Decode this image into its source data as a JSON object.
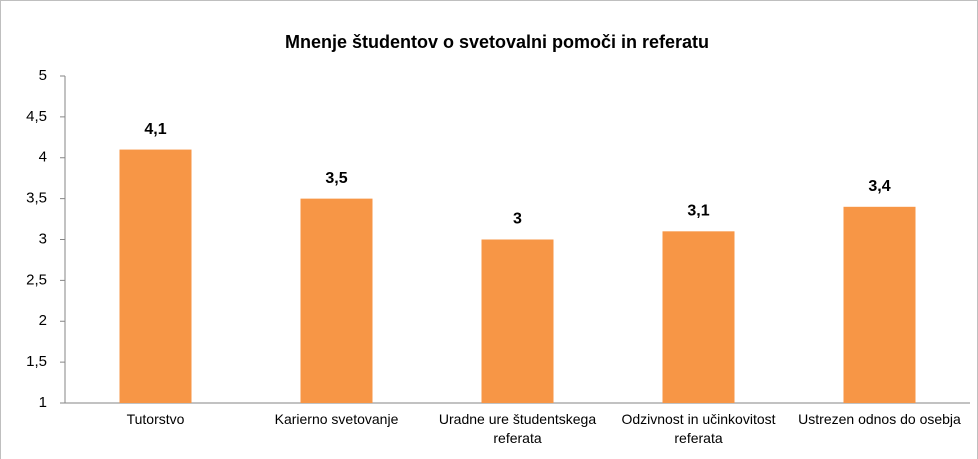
{
  "chart_data": {
    "type": "bar",
    "title": "Mnenje študentov o svetovalni pomoči in referatu",
    "categories": [
      "Tutorstvo",
      "Karierno svetovanje",
      "Uradne ure študentskega referata",
      "Odzivnost in učinkovitost referata",
      "Ustrezen odnos do osebja"
    ],
    "values": [
      4.1,
      3.5,
      3,
      3.1,
      3.4
    ],
    "value_labels": [
      "4,1",
      "3,5",
      "3",
      "3,1",
      "3,4"
    ],
    "color": "#f79646",
    "ylim": [
      1,
      5
    ],
    "yticks": [
      1,
      {
        "value": 1.5,
        "label": "1,5"
      },
      2,
      {
        "value": 2.5,
        "label": "2,5"
      },
      3,
      {
        "value": 3.5,
        "label": "3,5"
      },
      4,
      {
        "value": 4.5,
        "label": "4,5"
      },
      5
    ]
  }
}
